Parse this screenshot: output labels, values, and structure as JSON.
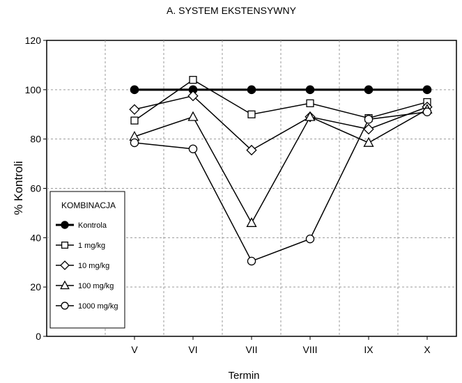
{
  "chart_data": {
    "type": "line",
    "title": "A. SYSTEM EKSTENSYWNY",
    "xlabel": "Termin",
    "ylabel": "% Kontroli",
    "categories": [
      "V",
      "VI",
      "VII",
      "VIII",
      "IX",
      "X"
    ],
    "ylim": [
      0,
      120
    ],
    "yticks": [
      0,
      20,
      40,
      60,
      80,
      100,
      120
    ],
    "grid": true,
    "legend": {
      "title": "KOMBINACJA",
      "placement": "bottom-left"
    },
    "series": [
      {
        "name": "Kontrola",
        "marker": "filled-circle",
        "values": [
          100,
          100,
          100,
          100,
          100,
          100
        ]
      },
      {
        "name": "1 mg/kg",
        "marker": "square",
        "values": [
          87.5,
          104,
          90,
          94.5,
          88.5,
          95
        ]
      },
      {
        "name": "10 mg/kg",
        "marker": "diamond",
        "values": [
          92,
          97.5,
          75.5,
          89,
          84,
          93
        ]
      },
      {
        "name": "100 mg/kg",
        "marker": "triangle",
        "values": [
          81,
          89,
          46,
          89,
          78.5,
          92
        ]
      },
      {
        "name": "1000 mg/kg",
        "marker": "circle",
        "values": [
          78.5,
          76,
          30.5,
          39.5,
          88,
          91
        ]
      }
    ]
  }
}
